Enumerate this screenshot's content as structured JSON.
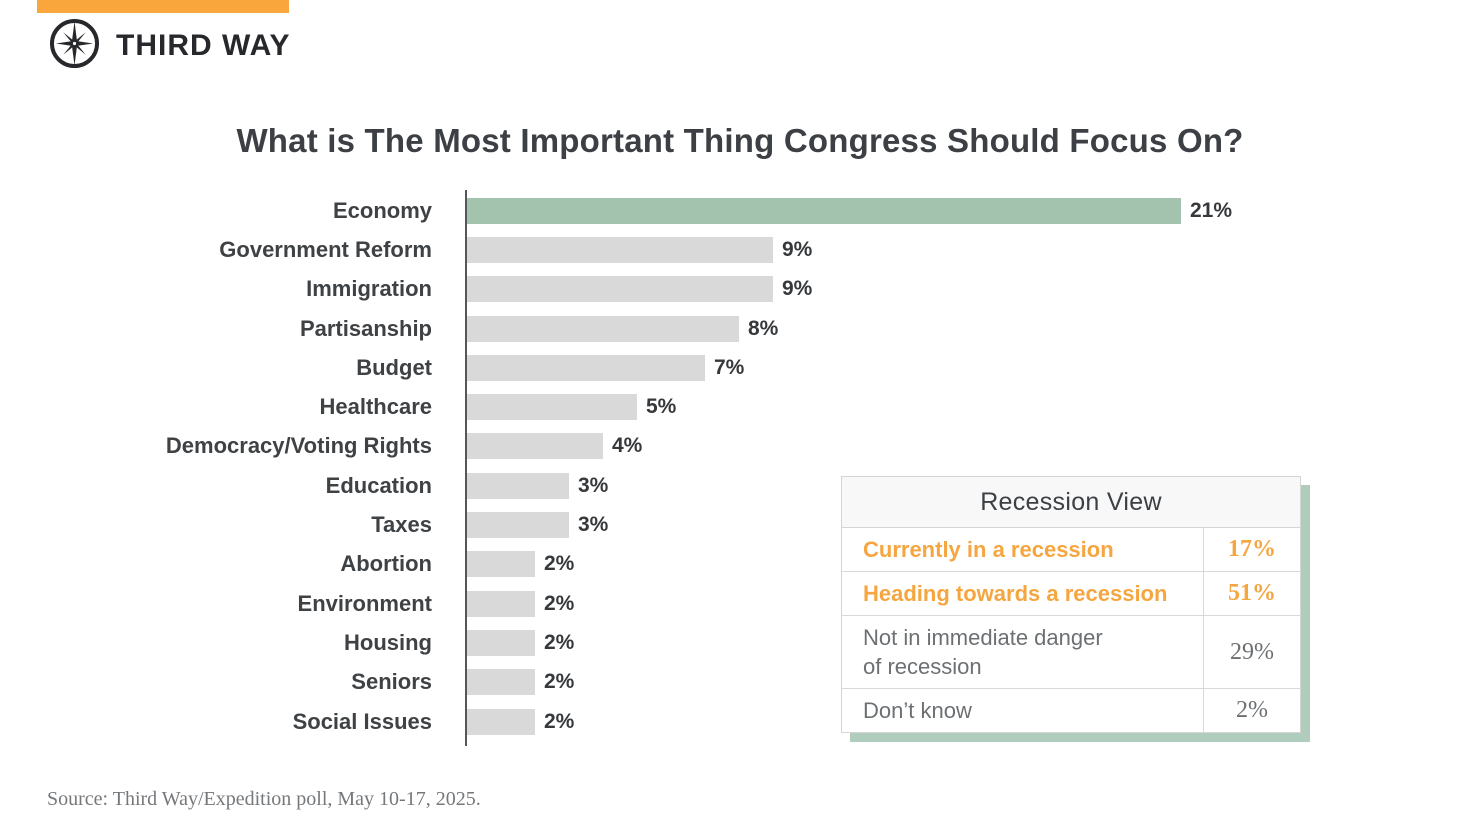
{
  "brand": {
    "logo_text": "THIRD WAY",
    "logo_icon": "compass-star-icon",
    "accent_color": "#F9A73C"
  },
  "title": "What is The Most Important Thing Congress Should Focus On?",
  "chart_data": {
    "type": "bar",
    "orientation": "horizontal",
    "title": "What is The Most Important Thing Congress Should Focus On?",
    "categories": [
      "Economy",
      "Government Reform",
      "Immigration",
      "Partisanship",
      "Budget",
      "Healthcare",
      "Democracy/Voting Rights",
      "Education",
      "Taxes",
      "Abortion",
      "Environment",
      "Housing",
      "Seniors",
      "Social Issues"
    ],
    "values": [
      21,
      9,
      9,
      8,
      7,
      5,
      4,
      3,
      3,
      2,
      2,
      2,
      2,
      2
    ],
    "value_labels": [
      "21%",
      "9%",
      "9%",
      "8%",
      "7%",
      "5%",
      "4%",
      "3%",
      "3%",
      "2%",
      "2%",
      "2%",
      "2%",
      "2%"
    ],
    "xlim": [
      0,
      21
    ],
    "grid": false,
    "legend": false,
    "highlight_category": "Economy",
    "highlight_color": "#A3C3AE",
    "bar_color": "#D9D9D9"
  },
  "recession_table": {
    "title": "Recession View",
    "rows": [
      {
        "label": "Currently in a recession",
        "value": "17%",
        "emphasis": true
      },
      {
        "label": "Heading towards a recession",
        "value": "51%",
        "emphasis": true
      },
      {
        "label": "Not in immediate danger\nof recession",
        "value": "29%",
        "emphasis": false
      },
      {
        "label": "Don’t know",
        "value": "2%",
        "emphasis": false
      }
    ],
    "emphasis_color": "#F5A640",
    "shadow_color": "#B0CCBC"
  },
  "source": "Source: Third Way/Expedition poll, May 10-17, 2025."
}
